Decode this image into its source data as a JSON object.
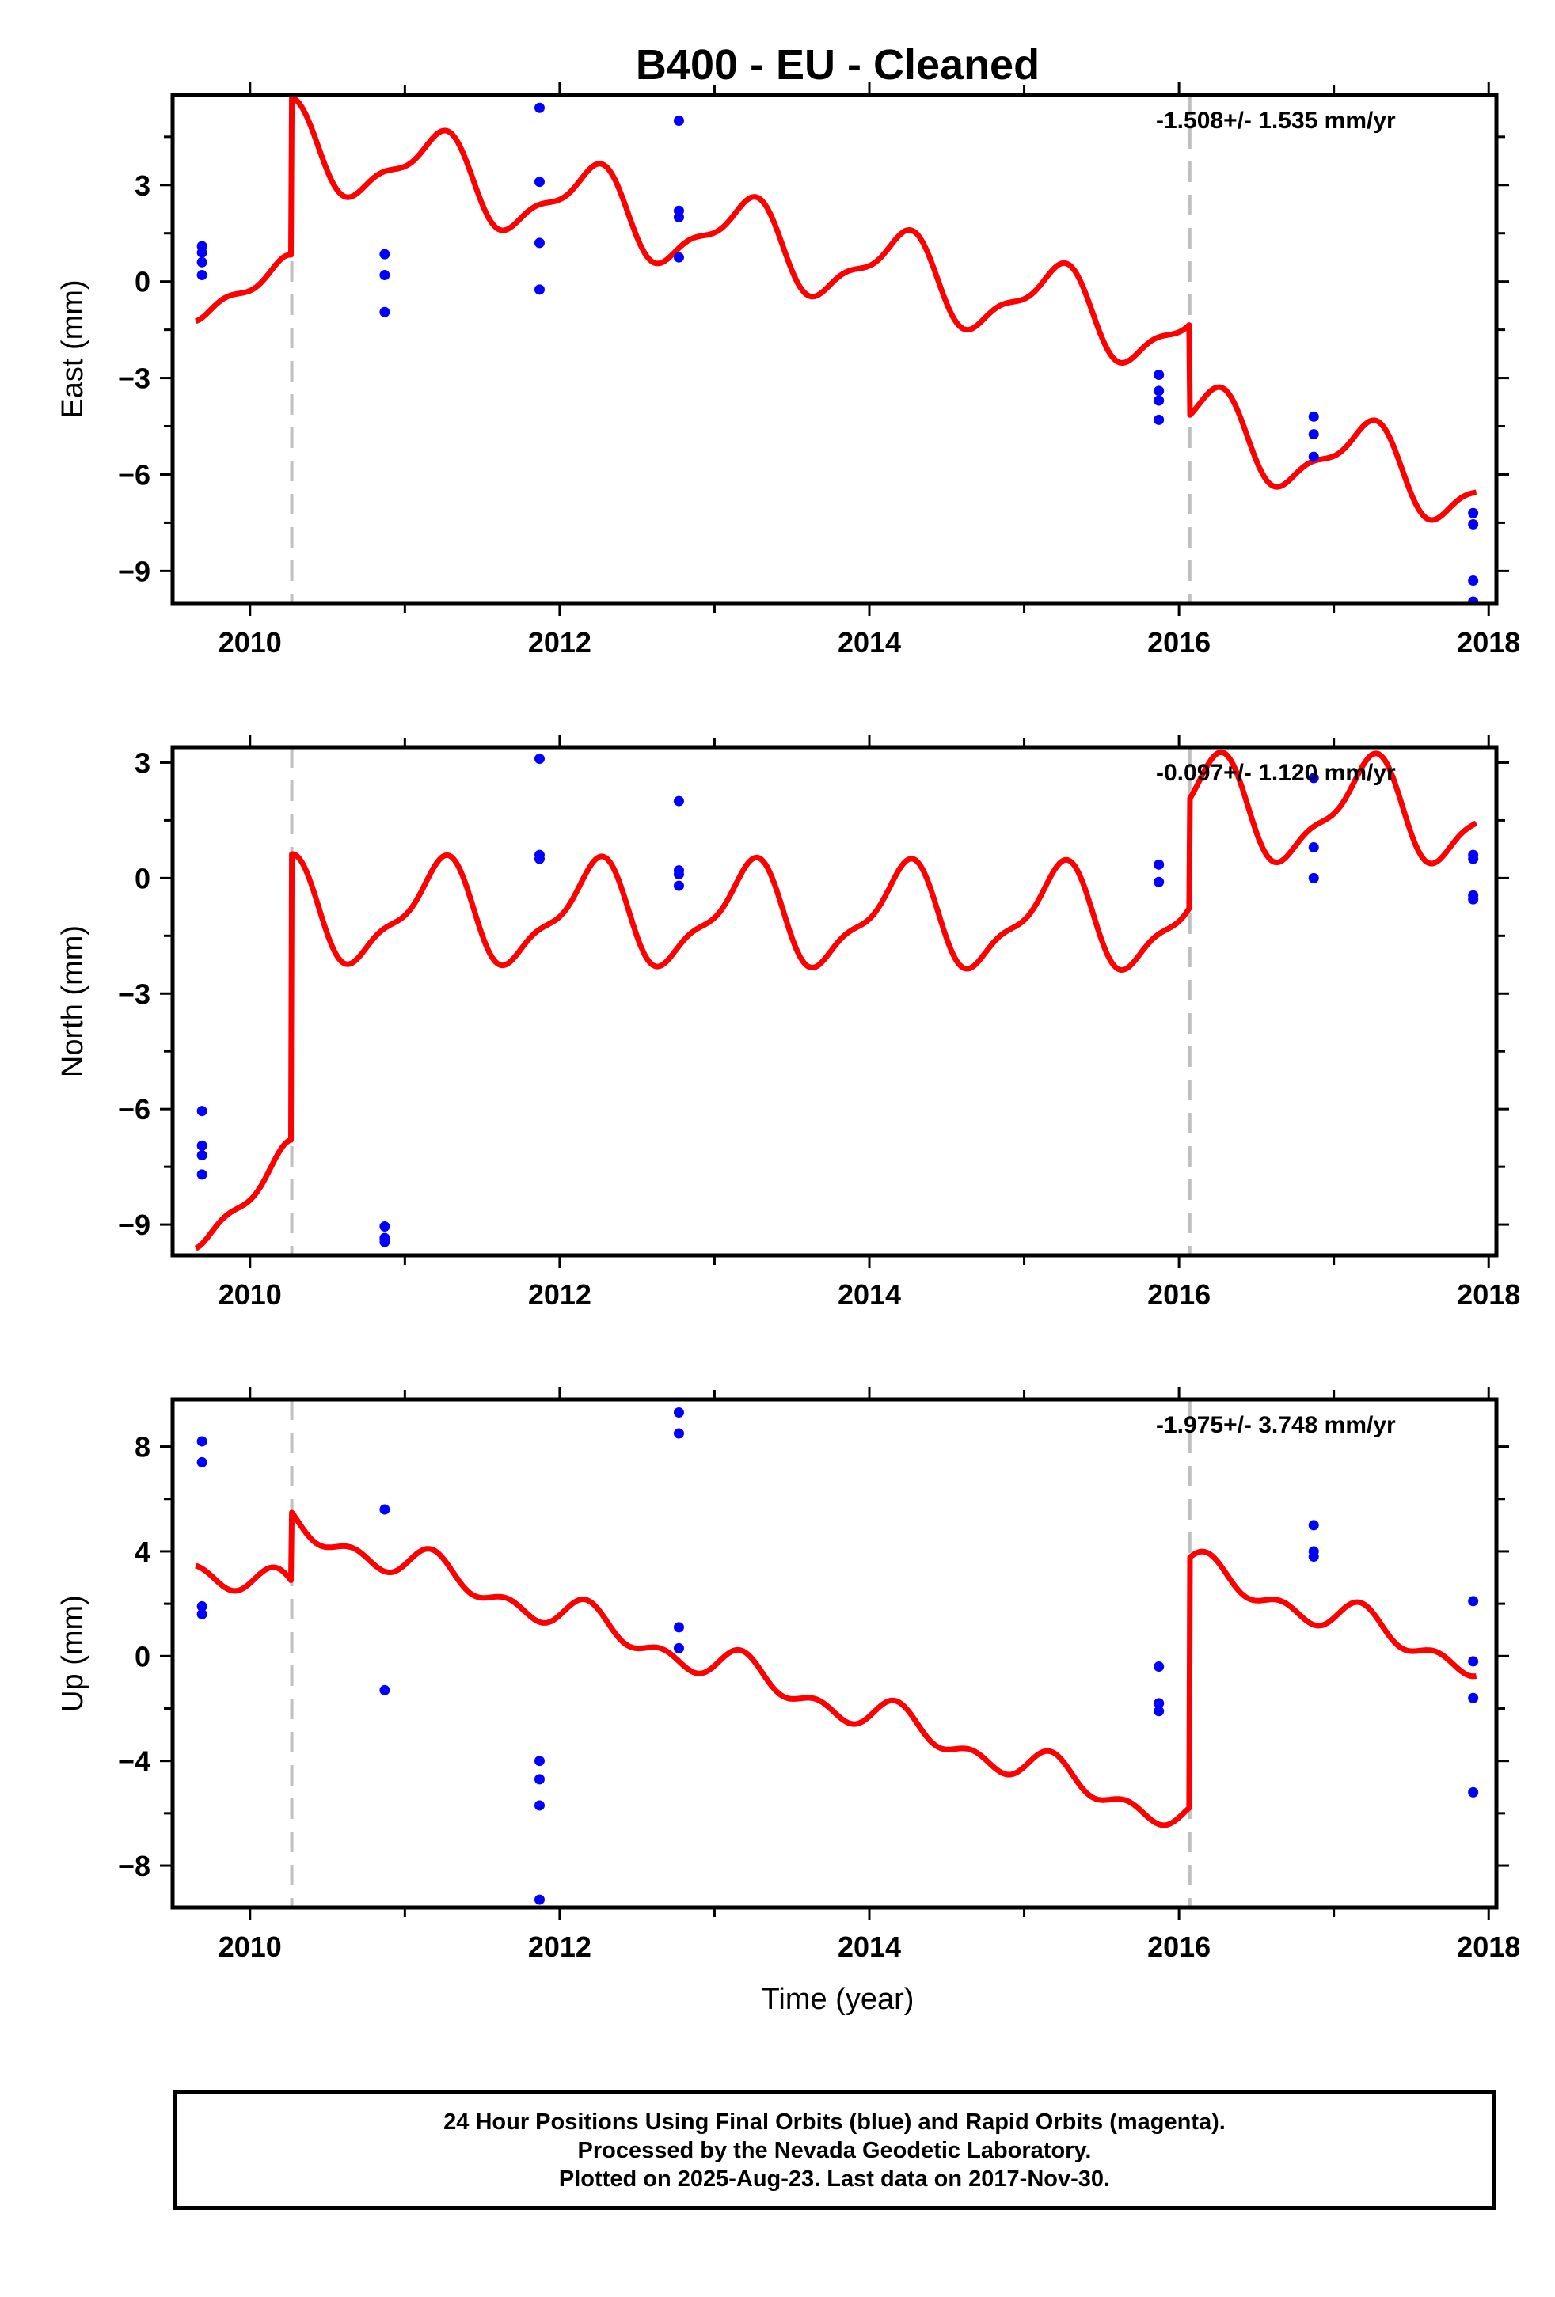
{
  "title": "B400  - EU - Cleaned",
  "xlabel": "Time (year)",
  "footer": {
    "line1": "24 Hour Positions Using Final Orbits (blue) and Rapid Orbits (magenta).",
    "line2": "Processed by the Nevada Geodetic Laboratory.",
    "line3": "Plotted on 2025-Aug-23. Last data on 2017-Nov-30."
  },
  "colors": {
    "model": "#ff0000",
    "final_orbit_points": "#0000ff",
    "rapid_orbit_points": "#ff00ff",
    "offset_lines": "#c0c0c0"
  },
  "chart_data": [
    {
      "type": "scatter",
      "ylabel": "East (mm)",
      "rate_text": "-1.508+/- 1.535 mm/yr",
      "xlim": [
        2009.5,
        2018.05
      ],
      "ylim": [
        -10.0,
        5.8
      ],
      "xticks": [
        2010,
        2012,
        2014,
        2016,
        2018
      ],
      "yticks": [
        3,
        0,
        -3,
        -6,
        -9
      ],
      "ytick_labels": [
        "3",
        "0",
        "−3",
        "−6",
        "−9"
      ],
      "offset_epochs": [
        2010.27,
        2016.07
      ],
      "points": [
        [
          2009.69,
          1.1
        ],
        [
          2009.69,
          0.9
        ],
        [
          2009.69,
          0.6
        ],
        [
          2009.69,
          0.2
        ],
        [
          2010.87,
          0.85
        ],
        [
          2010.87,
          0.2
        ],
        [
          2010.87,
          -0.95
        ],
        [
          2011.87,
          5.4
        ],
        [
          2011.87,
          3.1
        ],
        [
          2011.87,
          1.2
        ],
        [
          2011.87,
          -0.25
        ],
        [
          2012.77,
          5.0
        ],
        [
          2012.77,
          2.2
        ],
        [
          2012.77,
          2.0
        ],
        [
          2012.77,
          0.75
        ],
        [
          2015.87,
          -2.9
        ],
        [
          2015.87,
          -3.4
        ],
        [
          2015.87,
          -3.7
        ],
        [
          2015.87,
          -4.3
        ],
        [
          2016.87,
          -4.2
        ],
        [
          2016.87,
          -4.75
        ],
        [
          2016.87,
          -5.45
        ],
        [
          2017.9,
          -7.2
        ],
        [
          2017.9,
          -7.55
        ],
        [
          2017.9,
          -9.3
        ],
        [
          2017.9,
          -9.95
        ]
      ],
      "model": {
        "x_range": [
          2009.65,
          2017.92
        ],
        "segments": [
          {
            "from": 2009.5,
            "to": 2010.27,
            "level_at_start": 0.2
          },
          {
            "from": 2010.27,
            "to": 2016.07,
            "level_at_start": 4.3
          },
          {
            "from": 2016.07,
            "to": 2018.05,
            "level_at_start": -4.5
          }
        ],
        "trend_per_year": -1.03,
        "annual_sin": 1.1,
        "annual_cos": 0.33,
        "semiannual_sin": -0.3,
        "semiannual_cos": -0.3
      }
    },
    {
      "type": "scatter",
      "ylabel": "North (mm)",
      "rate_text": "-0.097+/- 1.120 mm/yr",
      "xlim": [
        2009.5,
        2018.05
      ],
      "ylim": [
        -9.8,
        3.4
      ],
      "xticks": [
        2010,
        2012,
        2014,
        2016,
        2018
      ],
      "yticks": [
        3,
        0,
        -3,
        -6,
        -9
      ],
      "ytick_labels": [
        "3",
        "0",
        "−3",
        "−6",
        "−9"
      ],
      "offset_epochs": [
        2010.27,
        2016.07
      ],
      "points": [
        [
          2009.69,
          -6.05
        ],
        [
          2009.69,
          -6.95
        ],
        [
          2009.69,
          -7.2
        ],
        [
          2009.69,
          -7.7
        ],
        [
          2010.87,
          -9.05
        ],
        [
          2010.87,
          -9.35
        ],
        [
          2010.87,
          -9.45
        ],
        [
          2011.87,
          3.1
        ],
        [
          2011.87,
          0.6
        ],
        [
          2011.87,
          0.5
        ],
        [
          2012.77,
          2.0
        ],
        [
          2012.77,
          0.2
        ],
        [
          2012.77,
          0.1
        ],
        [
          2012.77,
          -0.2
        ],
        [
          2015.87,
          0.35
        ],
        [
          2015.87,
          -0.1
        ],
        [
          2016.87,
          2.6
        ],
        [
          2016.87,
          0.8
        ],
        [
          2016.87,
          0.0
        ],
        [
          2017.9,
          0.6
        ],
        [
          2017.9,
          0.5
        ],
        [
          2017.9,
          -0.45
        ],
        [
          2017.9,
          -0.55
        ]
      ],
      "model": {
        "x_range": [
          2009.65,
          2017.92
        ],
        "segments": [
          {
            "from": 2009.5,
            "to": 2010.27,
            "level_at_start": -8.3
          },
          {
            "from": 2010.27,
            "to": 2016.07,
            "level_at_start": -0.9
          },
          {
            "from": 2016.07,
            "to": 2018.05,
            "level_at_start": 1.75
          }
        ],
        "trend_per_year": -0.03,
        "annual_sin": 1.2,
        "annual_cos": 0.25,
        "semiannual_sin": -0.3,
        "semiannual_cos": -0.3
      }
    },
    {
      "type": "scatter",
      "ylabel": "Up (mm)",
      "rate_text": "-1.975+/- 3.748 mm/yr",
      "xlim": [
        2009.5,
        2018.05
      ],
      "ylim": [
        -9.6,
        9.8
      ],
      "xticks": [
        2010,
        2012,
        2014,
        2016,
        2018
      ],
      "yticks": [
        8,
        4,
        0,
        -4,
        -8
      ],
      "ytick_labels": [
        "8",
        "4",
        "0",
        "−4",
        "−8"
      ],
      "offset_epochs": [
        2010.27,
        2016.07
      ],
      "points": [
        [
          2009.69,
          8.2
        ],
        [
          2009.69,
          7.4
        ],
        [
          2009.69,
          1.9
        ],
        [
          2009.69,
          1.6
        ],
        [
          2010.87,
          5.6
        ],
        [
          2010.87,
          -1.3
        ],
        [
          2011.87,
          -4.0
        ],
        [
          2011.87,
          -4.7
        ],
        [
          2011.87,
          -5.7
        ],
        [
          2011.87,
          -9.3
        ],
        [
          2012.77,
          9.3
        ],
        [
          2012.77,
          8.5
        ],
        [
          2012.77,
          1.1
        ],
        [
          2012.77,
          0.3
        ],
        [
          2015.87,
          -0.4
        ],
        [
          2015.87,
          -1.8
        ],
        [
          2015.87,
          -2.1
        ],
        [
          2016.87,
          5.0
        ],
        [
          2016.87,
          4.0
        ],
        [
          2016.87,
          3.8
        ],
        [
          2017.9,
          2.1
        ],
        [
          2017.9,
          -0.2
        ],
        [
          2017.9,
          -1.6
        ],
        [
          2017.9,
          -5.2
        ]
      ],
      "model": {
        "x_range": [
          2009.65,
          2017.92
        ],
        "segments": [
          {
            "from": 2009.5,
            "to": 2010.27,
            "level_at_start": 3.8
          },
          {
            "from": 2010.27,
            "to": 2016.07,
            "level_at_start": 4.95
          },
          {
            "from": 2016.07,
            "to": 2018.05,
            "level_at_start": 3.3
          }
        ],
        "trend_per_year": -1.93,
        "annual_sin": 0.45,
        "annual_cos": 0.15,
        "semiannual_sin": 0.35,
        "semiannual_cos": -0.2
      }
    }
  ]
}
